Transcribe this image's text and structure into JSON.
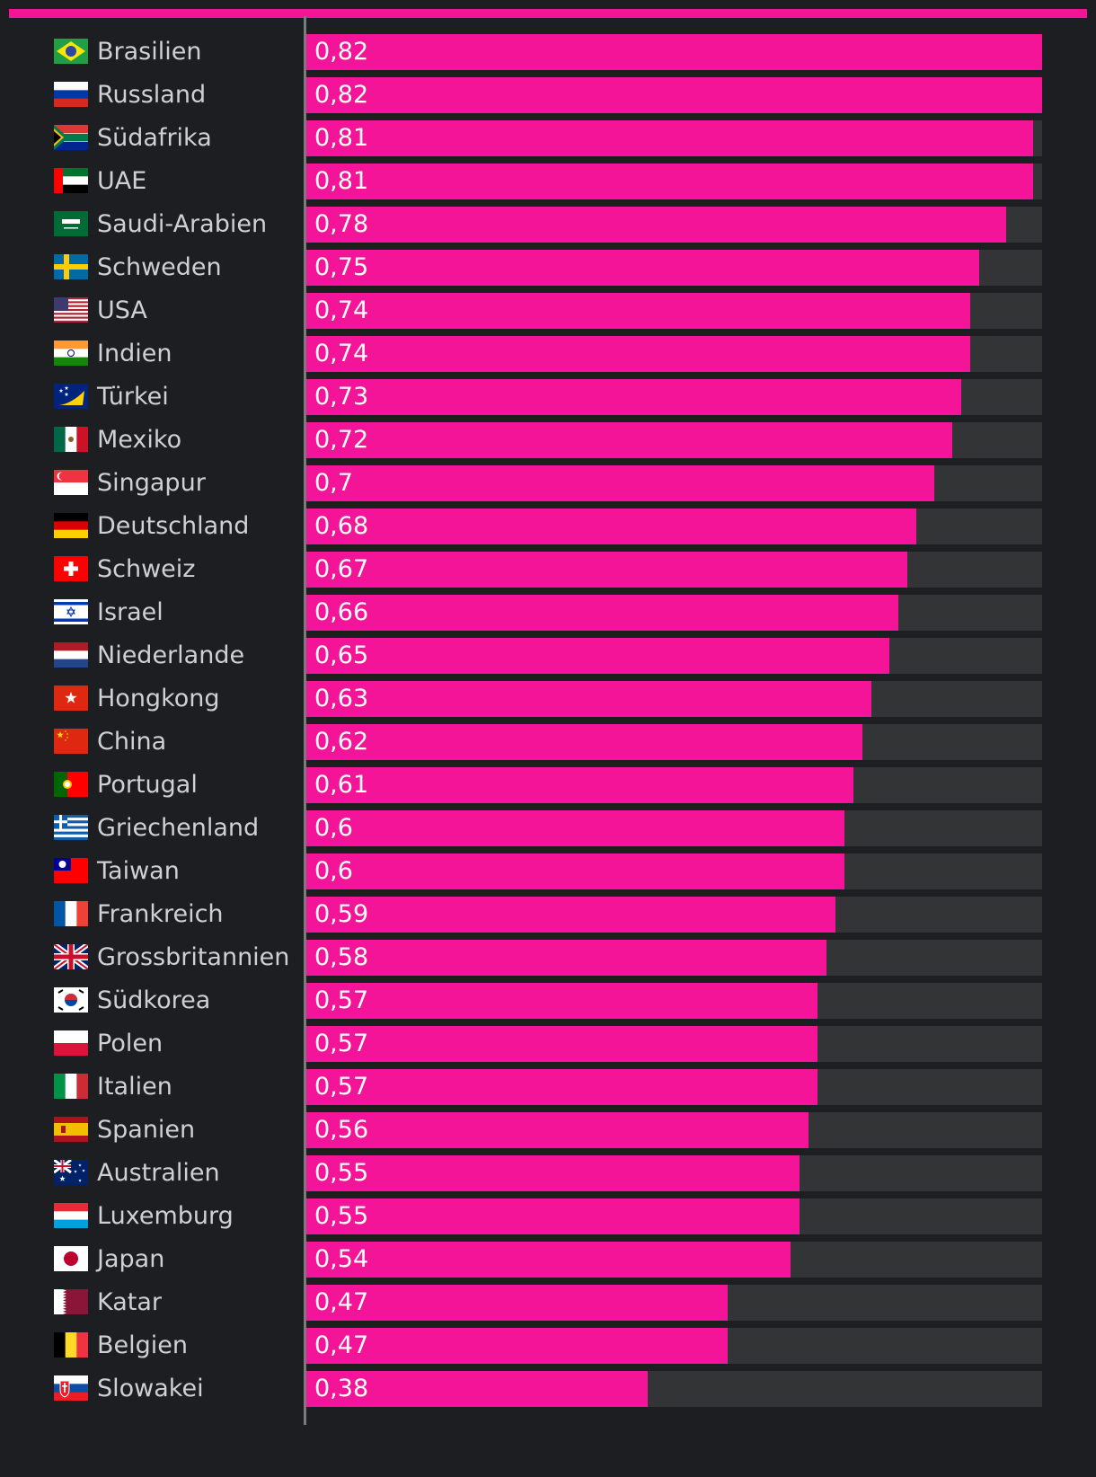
{
  "colors": {
    "background": "#1d1e21",
    "accent": "#f41497",
    "track": "#333436",
    "label": "#cfd0d2",
    "value_text": "#ffffff",
    "axis": "#7a7b7d"
  },
  "chart_data": {
    "type": "bar",
    "orientation": "horizontal",
    "categories": [
      "Brasilien",
      "Russland",
      "Südafrika",
      "UAE",
      "Saudi-Arabien",
      "Schweden",
      "USA",
      "Indien",
      "Türkei",
      "Mexiko",
      "Singapur",
      "Deutschland",
      "Schweiz",
      "Israel",
      "Niederlande",
      "Hongkong",
      "China",
      "Portugal",
      "Griechenland",
      "Taiwan",
      "Frankreich",
      "Grossbritannien",
      "Südkorea",
      "Polen",
      "Italien",
      "Spanien",
      "Australien",
      "Luxemburg",
      "Japan",
      "Katar",
      "Belgien",
      "Slowakei"
    ],
    "values": [
      0.82,
      0.82,
      0.81,
      0.81,
      0.78,
      0.75,
      0.74,
      0.74,
      0.73,
      0.72,
      0.7,
      0.68,
      0.67,
      0.66,
      0.65,
      0.63,
      0.62,
      0.61,
      0.6,
      0.6,
      0.59,
      0.58,
      0.57,
      0.57,
      0.57,
      0.56,
      0.55,
      0.55,
      0.54,
      0.47,
      0.47,
      0.38
    ],
    "value_labels": [
      "0,82",
      "0,82",
      "0,81",
      "0,81",
      "0,78",
      "0,75",
      "0,74",
      "0,74",
      "0,73",
      "0,72",
      "0,7",
      "0,68",
      "0,67",
      "0,66",
      "0,65",
      "0,63",
      "0,62",
      "0,61",
      "0,6",
      "0,6",
      "0,59",
      "0,58",
      "0,57",
      "0,57",
      "0,57",
      "0,56",
      "0,55",
      "0,55",
      "0,54",
      "0,47",
      "0,47",
      "0,38"
    ],
    "flag_icons": [
      "brazil-flag-icon",
      "russia-flag-icon",
      "south-africa-flag-icon",
      "uae-flag-icon",
      "saudi-arabia-flag-icon",
      "sweden-flag-icon",
      "usa-flag-icon",
      "india-flag-icon",
      "tokelau-flag-icon",
      "mexico-flag-icon",
      "singapore-flag-icon",
      "germany-flag-icon",
      "switzerland-flag-icon",
      "israel-flag-icon",
      "netherlands-flag-icon",
      "hong-kong-flag-icon",
      "china-flag-icon",
      "portugal-flag-icon",
      "greece-flag-icon",
      "taiwan-flag-icon",
      "france-flag-icon",
      "uk-flag-icon",
      "south-korea-flag-icon",
      "poland-flag-icon",
      "italy-flag-icon",
      "spain-flag-icon",
      "australia-flag-icon",
      "luxembourg-flag-icon",
      "japan-flag-icon",
      "qatar-flag-icon",
      "belgium-flag-icon",
      "slovakia-flag-icon"
    ],
    "xlim": [
      0,
      0.82
    ],
    "grid": false,
    "legend": "none"
  }
}
